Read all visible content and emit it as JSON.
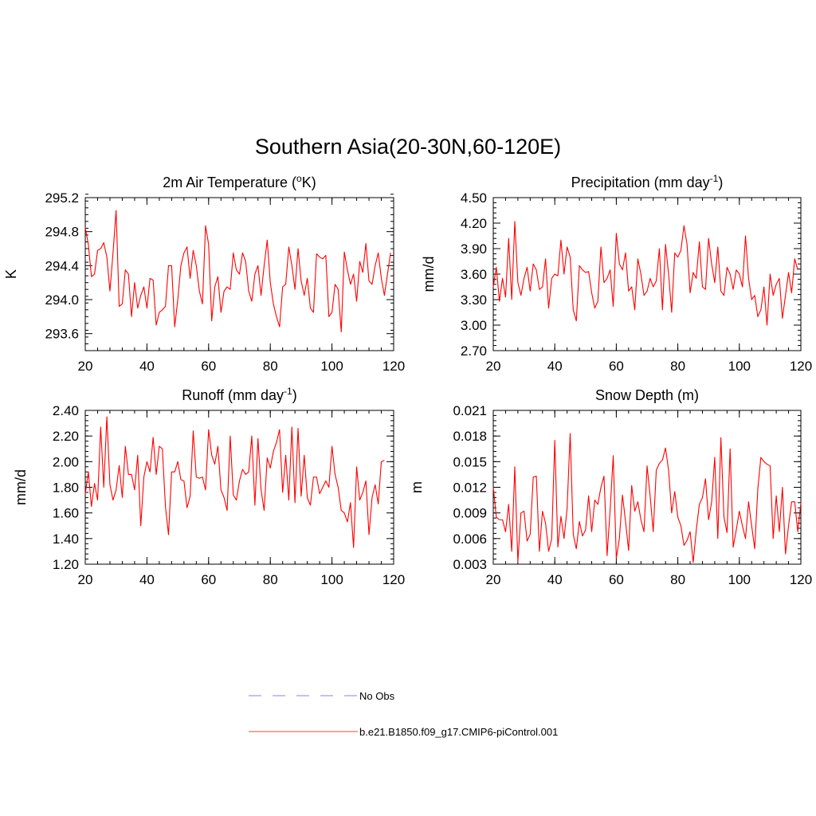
{
  "figure": {
    "title": "Southern Asia(20-30N,60-120E)"
  },
  "chart_data": [
    {
      "id": "temp",
      "type": "line",
      "title": "2m Air Temperature (",
      "title_sup": "o",
      "title_end": "K)",
      "xlabel": "",
      "ylabel": "K",
      "xlim": [
        20,
        120
      ],
      "ylim": [
        293.4,
        295.2
      ],
      "xticks": [
        20,
        40,
        60,
        80,
        100,
        120
      ],
      "xtick_labels": [
        "20",
        "40",
        "60",
        "80",
        "100",
        "120"
      ],
      "yticks": [
        293.6,
        294.0,
        294.4,
        294.8,
        295.2
      ],
      "ytick_labels": [
        "293.6",
        "294.0",
        "294.4",
        "294.8",
        "295.2"
      ],
      "x_start": 20,
      "series": [
        {
          "name": "b.e21.B1850.f09_g17.CMIP6-piControl.001",
          "color": "#ff0000",
          "values": [
            294.85,
            294.65,
            294.27,
            294.3,
            294.58,
            294.6,
            294.67,
            294.5,
            294.1,
            294.55,
            295.05,
            293.92,
            293.95,
            294.35,
            294.3,
            293.8,
            294.2,
            293.9,
            294.05,
            294.15,
            293.9,
            294.25,
            294.23,
            293.7,
            293.85,
            293.88,
            293.92,
            294.4,
            294.4,
            293.68,
            294.0,
            294.4,
            294.55,
            294.62,
            294.25,
            294.58,
            294.4,
            294.1,
            293.95,
            294.87,
            294.65,
            293.75,
            294.15,
            294.27,
            293.85,
            294.1,
            294.15,
            294.12,
            294.55,
            294.35,
            294.3,
            294.55,
            294.45,
            294.1,
            293.98,
            294.3,
            294.4,
            294.05,
            294.4,
            294.7,
            294.2,
            293.95,
            293.8,
            293.68,
            294.15,
            294.18,
            294.62,
            294.4,
            294.12,
            294.6,
            294.22,
            294.05,
            294.25,
            293.9,
            293.85,
            294.54,
            294.5,
            294.48,
            294.52,
            293.8,
            293.85,
            294.18,
            294.12,
            293.62,
            294.56,
            294.35,
            294.18,
            294.3,
            293.98,
            294.45,
            294.32,
            294.66,
            294.22,
            294.18,
            294.4,
            294.55,
            294.25,
            294.05,
            294.3,
            294.55
          ]
        }
      ]
    },
    {
      "id": "precip",
      "type": "line",
      "title": "Precipitation (mm day",
      "title_sup": "-1",
      "title_end": ")",
      "xlabel": "",
      "ylabel": "mm/d",
      "xlim": [
        20,
        120
      ],
      "ylim": [
        2.7,
        4.5
      ],
      "xticks": [
        20,
        40,
        60,
        80,
        100,
        120
      ],
      "xtick_labels": [
        "20",
        "40",
        "60",
        "80",
        "100",
        "120"
      ],
      "yticks": [
        2.7,
        3.0,
        3.3,
        3.6,
        3.9,
        4.2,
        4.5
      ],
      "ytick_labels": [
        "2.70",
        "3.00",
        "3.30",
        "3.60",
        "3.90",
        "4.20",
        "4.50"
      ],
      "x_start": 20,
      "series": [
        {
          "name": "b.e21.B1850.f09_g17.CMIP6-piControl.001",
          "color": "#ff0000",
          "values": [
            3.45,
            3.68,
            3.28,
            3.55,
            3.33,
            4.02,
            3.3,
            4.22,
            3.5,
            3.35,
            3.55,
            3.68,
            3.4,
            3.72,
            3.65,
            3.42,
            3.45,
            3.78,
            3.2,
            3.55,
            3.6,
            3.58,
            4.0,
            3.6,
            3.92,
            3.8,
            3.18,
            3.05,
            3.7,
            3.65,
            3.62,
            3.63,
            3.38,
            3.2,
            3.28,
            3.92,
            3.5,
            3.55,
            3.65,
            3.22,
            4.08,
            3.72,
            3.65,
            3.85,
            3.4,
            3.45,
            3.18,
            3.78,
            3.6,
            3.35,
            3.4,
            3.55,
            3.45,
            3.52,
            3.9,
            3.18,
            3.95,
            3.6,
            3.15,
            3.85,
            3.8,
            3.88,
            4.17,
            3.95,
            3.38,
            3.62,
            3.55,
            3.98,
            3.45,
            3.42,
            4.02,
            3.72,
            3.5,
            3.92,
            3.4,
            3.35,
            3.68,
            3.6,
            3.42,
            3.65,
            3.6,
            3.45,
            4.05,
            3.55,
            3.3,
            3.35,
            3.1,
            3.18,
            3.45,
            3.0,
            3.6,
            3.35,
            3.48,
            3.55,
            3.08,
            3.35,
            3.62,
            3.38,
            3.78,
            3.65
          ]
        }
      ]
    },
    {
      "id": "runoff",
      "type": "line",
      "title": "Runoff (mm day",
      "title_sup": "-1",
      "title_end": ")",
      "xlabel": "",
      "ylabel": "mm/d",
      "xlim": [
        20,
        120
      ],
      "ylim": [
        1.2,
        2.4
      ],
      "xticks": [
        20,
        40,
        60,
        80,
        100,
        120
      ],
      "xtick_labels": [
        "20",
        "40",
        "60",
        "80",
        "100",
        "120"
      ],
      "yticks": [
        1.2,
        1.4,
        1.6,
        1.8,
        2.0,
        2.2,
        2.4
      ],
      "ytick_labels": [
        "1.20",
        "1.40",
        "1.60",
        "1.80",
        "2.00",
        "2.20",
        "2.40"
      ],
      "x_start": 20,
      "series": [
        {
          "name": "b.e21.B1850.f09_g17.CMIP6-piControl.001",
          "color": "#ff0000",
          "values": [
            1.75,
            1.92,
            1.65,
            1.83,
            1.7,
            2.27,
            1.8,
            2.35,
            1.82,
            1.7,
            1.78,
            1.97,
            1.72,
            2.12,
            1.9,
            1.9,
            1.78,
            2.05,
            1.5,
            1.88,
            2.0,
            1.92,
            2.19,
            1.9,
            2.12,
            2.1,
            1.65,
            1.43,
            1.92,
            1.92,
            2.0,
            1.86,
            1.85,
            1.64,
            1.73,
            2.24,
            1.88,
            1.87,
            1.88,
            1.78,
            2.25,
            2.05,
            1.98,
            2.12,
            1.78,
            1.72,
            1.62,
            2.2,
            1.74,
            1.7,
            1.85,
            1.94,
            1.9,
            1.92,
            2.2,
            1.66,
            2.18,
            1.78,
            1.62,
            2.03,
            1.95,
            2.08,
            2.15,
            2.25,
            1.76,
            2.05,
            1.7,
            2.27,
            1.68,
            2.26,
            1.73,
            2.05,
            1.72,
            1.66,
            1.88,
            1.88,
            1.75,
            1.8,
            1.85,
            1.8,
            2.12,
            1.9,
            1.8,
            1.62,
            1.6,
            1.53,
            1.68,
            1.33,
            1.96,
            1.7,
            1.76,
            1.85,
            1.43,
            1.72,
            1.82,
            1.67,
            2.0,
            2.01
          ]
        }
      ]
    },
    {
      "id": "snow",
      "type": "line",
      "title": "Snow Depth (m)",
      "title_sup": "",
      "title_end": "",
      "xlabel": "",
      "ylabel": "m",
      "xlim": [
        20,
        120
      ],
      "ylim": [
        0.003,
        0.021
      ],
      "xticks": [
        20,
        40,
        60,
        80,
        100,
        120
      ],
      "xtick_labels": [
        "20",
        "40",
        "60",
        "80",
        "100",
        "120"
      ],
      "yticks": [
        0.003,
        0.006,
        0.009,
        0.012,
        0.015,
        0.018,
        0.021
      ],
      "ytick_labels": [
        "0.003",
        "0.006",
        "0.009",
        "0.012",
        "0.015",
        "0.018",
        "0.021"
      ],
      "x_start": 20,
      "series": [
        {
          "name": "b.e21.B1850.f09_g17.CMIP6-piControl.001",
          "color": "#ff0000",
          "values": [
            0.012,
            0.0085,
            0.0082,
            0.0082,
            0.0068,
            0.01,
            0.0045,
            0.0144,
            0.0033,
            0.009,
            0.0092,
            0.0057,
            0.0065,
            0.0132,
            0.0133,
            0.0045,
            0.0092,
            0.0078,
            0.0045,
            0.006,
            0.0175,
            0.005,
            0.0086,
            0.006,
            0.0095,
            0.0183,
            0.0065,
            0.0048,
            0.008,
            0.0063,
            0.007,
            0.011,
            0.0068,
            0.0105,
            0.01,
            0.012,
            0.0133,
            0.004,
            0.0094,
            0.0157,
            0.0037,
            0.006,
            0.0111,
            0.008,
            0.0046,
            0.0122,
            0.0092,
            0.0103,
            0.0082,
            0.0068,
            0.0145,
            0.011,
            0.0068,
            0.014,
            0.0148,
            0.0152,
            0.0166,
            0.014,
            0.009,
            0.0115,
            0.0085,
            0.0075,
            0.0052,
            0.0058,
            0.0068,
            0.0032,
            0.007,
            0.01,
            0.0108,
            0.013,
            0.0082,
            0.0103,
            0.0155,
            0.006,
            0.0178,
            0.0085,
            0.0067,
            0.0165,
            0.005,
            0.007,
            0.0092,
            0.0075,
            0.006,
            0.0103,
            0.0075,
            0.0048,
            0.0118,
            0.0155,
            0.015,
            0.0147,
            0.0145,
            0.006,
            0.011,
            0.0068,
            0.012,
            0.0042,
            0.0075,
            0.0103,
            0.0103,
            0.0068,
            0.0102
          ]
        }
      ]
    }
  ],
  "legend": [
    {
      "name": "No Obs",
      "color": "#9b9bff",
      "style": "dashed"
    },
    {
      "name": "b.e21.B1850.f09_g17.CMIP6-piControl.001",
      "color": "#ff6666",
      "style": "solid"
    }
  ]
}
